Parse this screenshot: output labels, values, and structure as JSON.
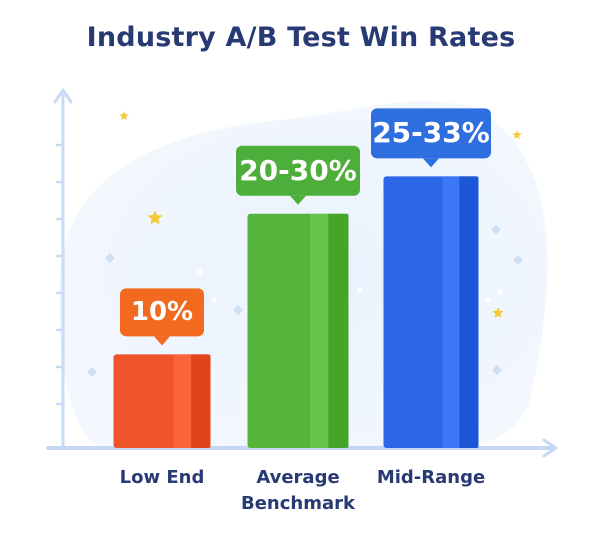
{
  "chart_data": {
    "type": "bar",
    "title": "Industry A/B Test Win Rates",
    "categories": [
      "Low End",
      "Average Benchmark",
      "Mid-Range"
    ],
    "category_lines": [
      [
        "Low End"
      ],
      [
        "Average",
        "Benchmark"
      ],
      [
        "Mid-Range"
      ]
    ],
    "values": [
      10,
      25,
      29
    ],
    "data_labels": [
      "10%",
      "20-30%",
      "25-33%"
    ],
    "ylim": [
      0,
      38
    ],
    "colors": [
      "#f0542a",
      "#55b53a",
      "#2b66e6"
    ],
    "label_colors": [
      "#f26a1f",
      "#4eae3c",
      "#2e6fe0"
    ],
    "grid": false,
    "legend": "none"
  }
}
